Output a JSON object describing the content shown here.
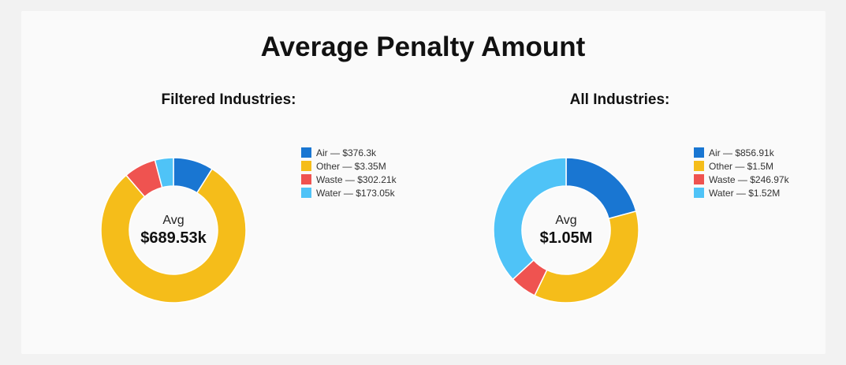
{
  "title": "Average Penalty Amount",
  "chart_data": [
    {
      "type": "pie",
      "title": "Filtered Industries:",
      "center_label": "Avg",
      "center_value": "$689.53k",
      "categories": [
        "Air",
        "Other",
        "Waste",
        "Water"
      ],
      "values": [
        376.3,
        3350,
        302.21,
        173.05
      ],
      "value_labels": [
        "$376.3k",
        "$3.35M",
        "$302.21k",
        "$173.05k"
      ],
      "colors": [
        "#1976d2",
        "#f5bd1a",
        "#ef5350",
        "#4fc3f7"
      ],
      "legend_position": "right"
    },
    {
      "type": "pie",
      "title": "All Industries:",
      "center_label": "Avg",
      "center_value": "$1.05M",
      "categories": [
        "Air",
        "Other",
        "Waste",
        "Water"
      ],
      "values": [
        856.91,
        1500,
        246.97,
        1520
      ],
      "value_labels": [
        "$856.91k",
        "$1.5M",
        "$246.97k",
        "$1.52M"
      ],
      "colors": [
        "#1976d2",
        "#f5bd1a",
        "#ef5350",
        "#4fc3f7"
      ],
      "legend_position": "right"
    }
  ]
}
